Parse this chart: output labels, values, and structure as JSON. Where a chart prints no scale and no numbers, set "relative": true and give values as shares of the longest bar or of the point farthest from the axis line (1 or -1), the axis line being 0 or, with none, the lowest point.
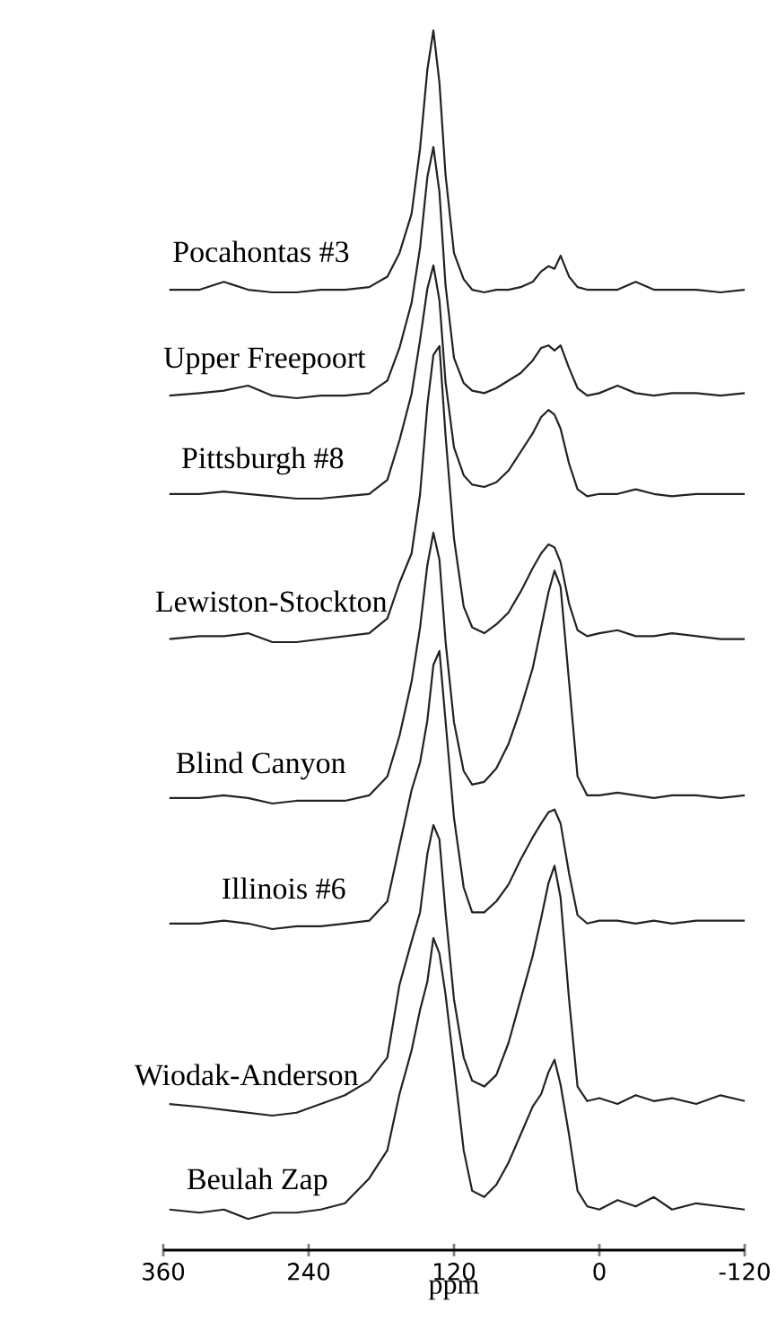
{
  "chart_data": [
    {
      "type": "line",
      "relative": true,
      "tick_labels": false,
      "xlim": [
        360,
        -120
      ],
      "x": [
        355,
        330,
        310,
        290,
        270,
        250,
        230,
        210,
        190,
        175,
        165,
        155,
        148,
        142,
        137,
        132,
        127,
        120,
        112,
        105,
        95,
        85,
        75,
        65,
        55,
        48,
        42,
        37,
        32,
        25,
        18,
        10,
        0,
        -15,
        -30,
        -45,
        -60,
        -80,
        -100,
        -120
      ],
      "series": [
        {
          "name": "Pocahontas #3",
          "color": "#222222",
          "values": [
            0.01,
            0.01,
            0.04,
            0.01,
            0,
            0,
            0.01,
            0.01,
            0.02,
            0.06,
            0.15,
            0.3,
            0.55,
            0.85,
            1,
            0.8,
            0.45,
            0.15,
            0.05,
            0.01,
            0,
            0.01,
            0.01,
            0.02,
            0.04,
            0.08,
            0.1,
            0.09,
            0.14,
            0.06,
            0.02,
            0.01,
            0.01,
            0.01,
            0.04,
            0.01,
            0.01,
            0.01,
            0,
            0.01
          ]
        }
      ]
    },
    {
      "type": "line",
      "relative": true,
      "tick_labels": false,
      "xlim": [
        360,
        -120
      ],
      "x": [
        355,
        330,
        310,
        290,
        270,
        250,
        230,
        210,
        190,
        175,
        165,
        155,
        148,
        142,
        137,
        132,
        127,
        120,
        112,
        105,
        95,
        85,
        75,
        65,
        55,
        48,
        42,
        37,
        32,
        25,
        18,
        10,
        0,
        -15,
        -30,
        -45,
        -60,
        -80,
        -100,
        -120
      ],
      "series": [
        {
          "name": "Upper Freepoort",
          "color": "#222222",
          "values": [
            0.01,
            0.02,
            0.03,
            0.05,
            0.01,
            0,
            0.01,
            0.01,
            0.02,
            0.07,
            0.2,
            0.38,
            0.6,
            0.88,
            1,
            0.82,
            0.45,
            0.16,
            0.06,
            0.03,
            0.02,
            0.04,
            0.07,
            0.1,
            0.15,
            0.2,
            0.21,
            0.19,
            0.21,
            0.12,
            0.04,
            0.01,
            0.02,
            0.05,
            0.02,
            0.01,
            0.02,
            0.02,
            0.01,
            0.02
          ]
        }
      ]
    },
    {
      "type": "line",
      "relative": true,
      "tick_labels": false,
      "xlim": [
        360,
        -120
      ],
      "x": [
        355,
        330,
        310,
        290,
        270,
        250,
        230,
        210,
        190,
        175,
        165,
        155,
        148,
        142,
        137,
        132,
        127,
        120,
        112,
        105,
        95,
        85,
        75,
        65,
        55,
        48,
        42,
        37,
        32,
        25,
        18,
        10,
        0,
        -15,
        -30,
        -45,
        -60,
        -80,
        -100,
        -120
      ],
      "series": [
        {
          "name": "Pittsburgh #8",
          "color": "#222222",
          "values": [
            0.02,
            0.02,
            0.03,
            0.02,
            0.01,
            0,
            0,
            0.01,
            0.02,
            0.08,
            0.25,
            0.45,
            0.68,
            0.9,
            1,
            0.85,
            0.5,
            0.22,
            0.1,
            0.06,
            0.05,
            0.07,
            0.12,
            0.2,
            0.28,
            0.35,
            0.38,
            0.36,
            0.3,
            0.15,
            0.04,
            0.01,
            0.02,
            0.02,
            0.04,
            0.02,
            0.01,
            0.02,
            0.02,
            0.02
          ]
        }
      ]
    },
    {
      "type": "line",
      "relative": true,
      "tick_labels": false,
      "xlim": [
        360,
        -120
      ],
      "x": [
        355,
        330,
        310,
        290,
        270,
        250,
        230,
        210,
        190,
        175,
        165,
        155,
        148,
        142,
        137,
        132,
        127,
        120,
        112,
        105,
        95,
        85,
        75,
        65,
        55,
        48,
        42,
        37,
        32,
        25,
        18,
        10,
        0,
        -15,
        -30,
        -45,
        -60,
        -80,
        -100,
        -120
      ],
      "series": [
        {
          "name": "Lewiston-Stockton",
          "color": "#222222",
          "values": [
            0.01,
            0.02,
            0.02,
            0.03,
            0,
            0,
            0.01,
            0.02,
            0.03,
            0.08,
            0.2,
            0.3,
            0.5,
            0.8,
            0.97,
            1,
            0.7,
            0.35,
            0.12,
            0.05,
            0.03,
            0.06,
            0.1,
            0.17,
            0.25,
            0.3,
            0.33,
            0.32,
            0.27,
            0.13,
            0.04,
            0.02,
            0.03,
            0.04,
            0.02,
            0.02,
            0.03,
            0.02,
            0.01,
            0.01
          ]
        }
      ]
    },
    {
      "type": "line",
      "relative": true,
      "tick_labels": false,
      "xlim": [
        360,
        -120
      ],
      "x": [
        355,
        330,
        310,
        290,
        270,
        250,
        230,
        210,
        190,
        175,
        165,
        155,
        148,
        142,
        137,
        132,
        127,
        120,
        112,
        105,
        95,
        85,
        75,
        65,
        55,
        48,
        42,
        37,
        32,
        25,
        18,
        10,
        0,
        -15,
        -30,
        -45,
        -60,
        -80,
        -100,
        -120
      ],
      "series": [
        {
          "name": "Blind Canyon",
          "color": "#222222",
          "values": [
            0.02,
            0.02,
            0.03,
            0.02,
            0,
            0.01,
            0.01,
            0.01,
            0.03,
            0.1,
            0.25,
            0.45,
            0.65,
            0.88,
            1,
            0.9,
            0.6,
            0.3,
            0.12,
            0.07,
            0.08,
            0.13,
            0.22,
            0.35,
            0.5,
            0.65,
            0.78,
            0.86,
            0.8,
            0.45,
            0.1,
            0.03,
            0.03,
            0.04,
            0.03,
            0.02,
            0.03,
            0.03,
            0.02,
            0.03
          ]
        }
      ]
    },
    {
      "type": "line",
      "relative": true,
      "tick_labels": false,
      "xlim": [
        360,
        -120
      ],
      "x": [
        355,
        330,
        310,
        290,
        270,
        250,
        230,
        210,
        190,
        175,
        165,
        155,
        148,
        142,
        137,
        132,
        127,
        120,
        112,
        105,
        95,
        85,
        75,
        65,
        55,
        48,
        42,
        37,
        32,
        25,
        18,
        10,
        0,
        -15,
        -30,
        -45,
        -60,
        -80,
        -100,
        -120
      ],
      "series": [
        {
          "name": "Illinois #6",
          "color": "#222222",
          "values": [
            0.02,
            0.02,
            0.03,
            0.02,
            0,
            0.01,
            0.01,
            0.02,
            0.03,
            0.1,
            0.3,
            0.5,
            0.6,
            0.75,
            0.95,
            1,
            0.75,
            0.4,
            0.15,
            0.06,
            0.06,
            0.1,
            0.16,
            0.25,
            0.33,
            0.38,
            0.42,
            0.43,
            0.38,
            0.2,
            0.05,
            0.02,
            0.03,
            0.03,
            0.02,
            0.03,
            0.02,
            0.03,
            0.03,
            0.03
          ]
        }
      ]
    },
    {
      "type": "line",
      "relative": true,
      "tick_labels": false,
      "xlim": [
        360,
        -120
      ],
      "x": [
        355,
        330,
        310,
        290,
        270,
        250,
        230,
        210,
        190,
        175,
        165,
        155,
        148,
        142,
        137,
        132,
        127,
        120,
        112,
        105,
        95,
        85,
        75,
        65,
        55,
        48,
        42,
        37,
        32,
        25,
        18,
        10,
        0,
        -15,
        -30,
        -45,
        -60,
        -80,
        -100,
        -120
      ],
      "series": [
        {
          "name": "Wiodak-Anderson",
          "color": "#222222",
          "values": [
            0.04,
            0.03,
            0.02,
            0.01,
            0,
            0.01,
            0.04,
            0.07,
            0.12,
            0.2,
            0.45,
            0.6,
            0.7,
            0.9,
            1,
            0.95,
            0.7,
            0.4,
            0.2,
            0.12,
            0.1,
            0.14,
            0.25,
            0.4,
            0.55,
            0.68,
            0.8,
            0.86,
            0.75,
            0.4,
            0.1,
            0.05,
            0.06,
            0.04,
            0.07,
            0.05,
            0.06,
            0.04,
            0.07,
            0.05
          ]
        }
      ]
    },
    {
      "type": "line",
      "relative": true,
      "tick_labels": "x",
      "xlim": [
        360,
        -120
      ],
      "xticks": [
        360,
        240,
        120,
        0,
        -120
      ],
      "xlabel": "ppm",
      "x": [
        355,
        330,
        310,
        290,
        270,
        250,
        230,
        210,
        190,
        175,
        165,
        155,
        148,
        142,
        137,
        132,
        127,
        120,
        112,
        105,
        95,
        85,
        75,
        65,
        55,
        48,
        42,
        37,
        32,
        25,
        18,
        10,
        0,
        -15,
        -30,
        -45,
        -60,
        -80,
        -100,
        -120
      ],
      "series": [
        {
          "name": "Beulah Zap",
          "color": "#222222",
          "values": [
            0.13,
            0.12,
            0.13,
            0.1,
            0.12,
            0.12,
            0.13,
            0.15,
            0.23,
            0.32,
            0.5,
            0.64,
            0.77,
            0.86,
            1,
            0.95,
            0.82,
            0.59,
            0.32,
            0.19,
            0.17,
            0.21,
            0.28,
            0.37,
            0.46,
            0.5,
            0.57,
            0.61,
            0.53,
            0.37,
            0.19,
            0.14,
            0.13,
            0.16,
            0.14,
            0.17,
            0.13,
            0.15,
            0.14,
            0.13
          ]
        }
      ]
    }
  ]
}
